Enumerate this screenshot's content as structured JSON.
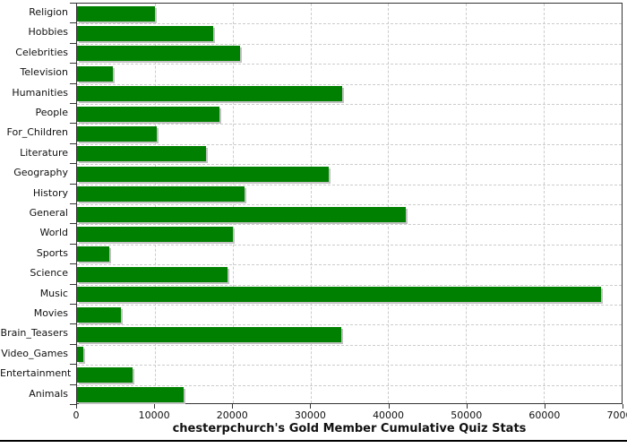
{
  "chart_data": {
    "type": "bar",
    "orientation": "horizontal",
    "title": "chesterpchurch's Gold Member Cumulative Quiz Stats",
    "categories": [
      "Religion",
      "Hobbies",
      "Celebrities",
      "Television",
      "Humanities",
      "People",
      "For_Children",
      "Literature",
      "Geography",
      "History",
      "General",
      "World",
      "Sports",
      "Science",
      "Music",
      "Movies",
      "Brain_Teasers",
      "Video_Games",
      "Entertainment",
      "Animals"
    ],
    "values": [
      10000,
      17500,
      21000,
      4600,
      34100,
      18300,
      10300,
      16600,
      32300,
      21500,
      42200,
      20000,
      4200,
      19300,
      67400,
      5600,
      34000,
      800,
      7100,
      13700
    ],
    "xlabel": "",
    "ylabel": "",
    "xlim": [
      0,
      70000
    ],
    "x_ticks": [
      0,
      10000,
      20000,
      30000,
      40000,
      50000,
      60000,
      70000
    ],
    "x_tick_labels": [
      "0",
      "10000",
      "20000",
      "30000",
      "40000",
      "50000",
      "60000",
      "70000"
    ],
    "grid": "dashed",
    "legend": "none",
    "colors": {
      "bar": "#008000",
      "bar_shadow": "#c2c2c2",
      "grid": "#cccccc",
      "axis": "#333333",
      "text": "#111111",
      "background": "#ffffff",
      "divider": "#000000"
    }
  }
}
